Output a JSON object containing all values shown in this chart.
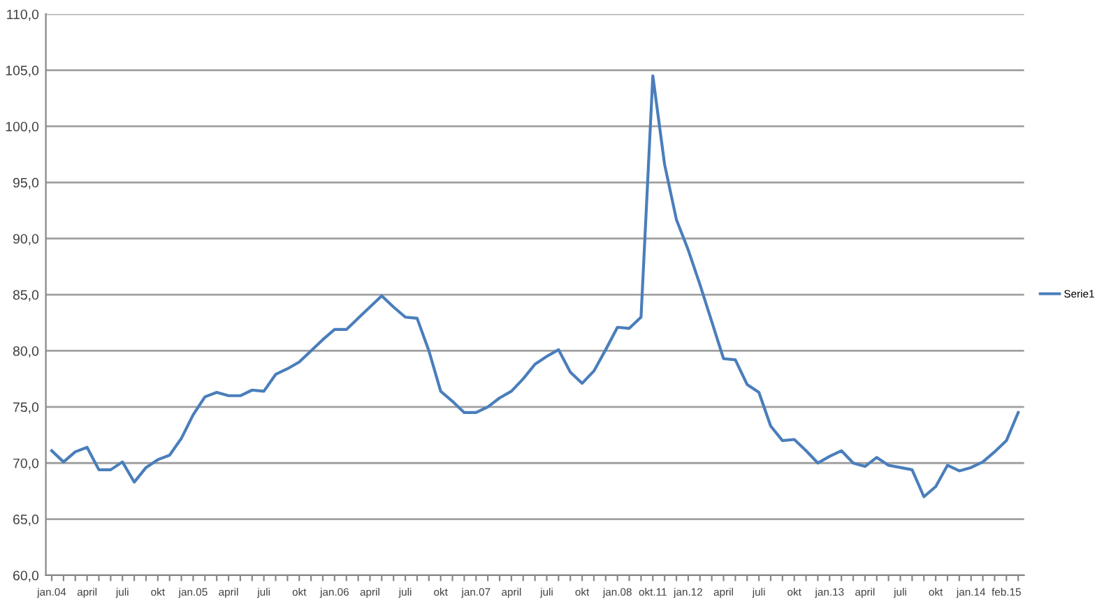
{
  "chart_data": {
    "type": "line",
    "categories": [
      "jan.04",
      null,
      null,
      "april",
      null,
      null,
      "juli",
      null,
      null,
      "okt",
      null,
      null,
      "jan.05",
      null,
      null,
      "april",
      null,
      null,
      "juli",
      null,
      null,
      "okt",
      null,
      null,
      "jan.06",
      null,
      null,
      "april",
      null,
      null,
      "juli",
      null,
      null,
      "okt",
      null,
      null,
      "jan.07",
      null,
      null,
      "april",
      null,
      null,
      "juli",
      null,
      null,
      "okt",
      null,
      null,
      "jan.08",
      null,
      null,
      "okt.11",
      null,
      null,
      "jan.12",
      null,
      null,
      "april",
      null,
      null,
      "juli",
      null,
      null,
      "okt",
      null,
      null,
      "jan.13",
      null,
      null,
      "april",
      null,
      null,
      "juli",
      null,
      null,
      "okt",
      null,
      null,
      "jan.14",
      null,
      null,
      "feb.15",
      null
    ],
    "series": [
      {
        "name": "Serie1",
        "color": "#4a7ebb",
        "values": [
          71.1,
          70.1,
          71.0,
          71.4,
          69.4,
          69.4,
          70.1,
          68.3,
          69.6,
          70.3,
          70.7,
          72.2,
          74.3,
          75.9,
          76.3,
          76.0,
          76.0,
          76.5,
          76.4,
          77.9,
          78.4,
          79.0,
          80.0,
          81.0,
          81.9,
          81.9,
          82.9,
          83.9,
          84.9,
          83.9,
          83.0,
          82.9,
          80.0,
          76.4,
          75.5,
          74.5,
          74.5,
          75.0,
          75.8,
          76.4,
          77.5,
          78.8,
          79.5,
          80.1,
          78.1,
          77.1,
          78.2,
          80.1,
          82.1,
          82.0,
          83.0,
          104.5,
          96.6,
          91.7,
          89.0,
          85.9,
          82.6,
          79.3,
          79.2,
          77.0,
          76.3,
          73.3,
          72.0,
          72.1,
          71.1,
          70.0,
          70.6,
          71.1,
          70.0,
          69.7,
          70.5,
          69.8,
          69.6,
          69.4,
          67.0,
          67.9,
          69.8,
          69.3,
          69.6,
          70.1,
          71.0,
          72.0,
          74.5
        ]
      }
    ],
    "ylim": [
      60,
      110
    ],
    "yticks": [
      {
        "value": 60,
        "label": "60,0"
      },
      {
        "value": 65,
        "label": "65,0"
      },
      {
        "value": 70,
        "label": "70,0"
      },
      {
        "value": 75,
        "label": "75,0"
      },
      {
        "value": 80,
        "label": "80,0"
      },
      {
        "value": 85,
        "label": "85,0"
      },
      {
        "value": 90,
        "label": "90,0"
      },
      {
        "value": 95,
        "label": "95,0"
      },
      {
        "value": 100,
        "label": "100,0"
      },
      {
        "value": 105,
        "label": "105,0"
      },
      {
        "value": 110,
        "label": "110,0"
      }
    ],
    "grid": "y",
    "legend": "right",
    "marker": "none",
    "line_style": "solid"
  }
}
